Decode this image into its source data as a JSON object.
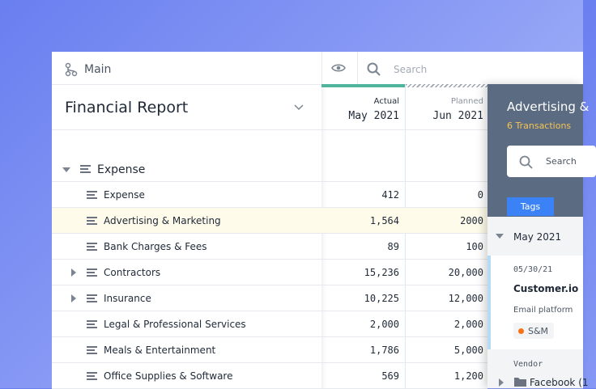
{
  "toolbar": {
    "workspace": "Main",
    "search_placeholder": "Search"
  },
  "report": {
    "title": "Financial Report"
  },
  "columns": [
    {
      "label": "Actual",
      "period": "May 2021"
    },
    {
      "label": "Planned",
      "period": "Jun 2021"
    }
  ],
  "group": {
    "name": "Expense"
  },
  "rows": [
    {
      "name": "Expense",
      "actual": "412",
      "planned": "0",
      "expandable": false,
      "selected": false
    },
    {
      "name": "Advertising & Marketing",
      "actual": "1,564",
      "planned": "2000",
      "expandable": false,
      "selected": true
    },
    {
      "name": "Bank Charges & Fees",
      "actual": "89",
      "planned": "100",
      "expandable": false,
      "selected": false
    },
    {
      "name": "Contractors",
      "actual": "15,236",
      "planned": "20,000",
      "expandable": true,
      "selected": false
    },
    {
      "name": "Insurance",
      "actual": "10,225",
      "planned": "12,000",
      "expandable": true,
      "selected": false
    },
    {
      "name": "Legal & Professional Services",
      "actual": "2,000",
      "planned": "2,000",
      "expandable": false,
      "selected": false
    },
    {
      "name": "Meals & Entertainment",
      "actual": "1,786",
      "planned": "5,000",
      "expandable": false,
      "selected": false
    },
    {
      "name": "Office Supplies & Software",
      "actual": "569",
      "planned": "1,200",
      "expandable": false,
      "selected": false
    }
  ],
  "detail": {
    "title": "Advertising &",
    "subtitle": "6 Transactions",
    "search_placeholder": "Search",
    "tab": "Tags",
    "section": "May 2021",
    "transaction": {
      "date": "05/30/21",
      "vendor": "Customer.io",
      "description": "Email platform",
      "tag": "S&M"
    },
    "vendor_heading": "Vendor",
    "vendor_item": "Facebook (1"
  }
}
